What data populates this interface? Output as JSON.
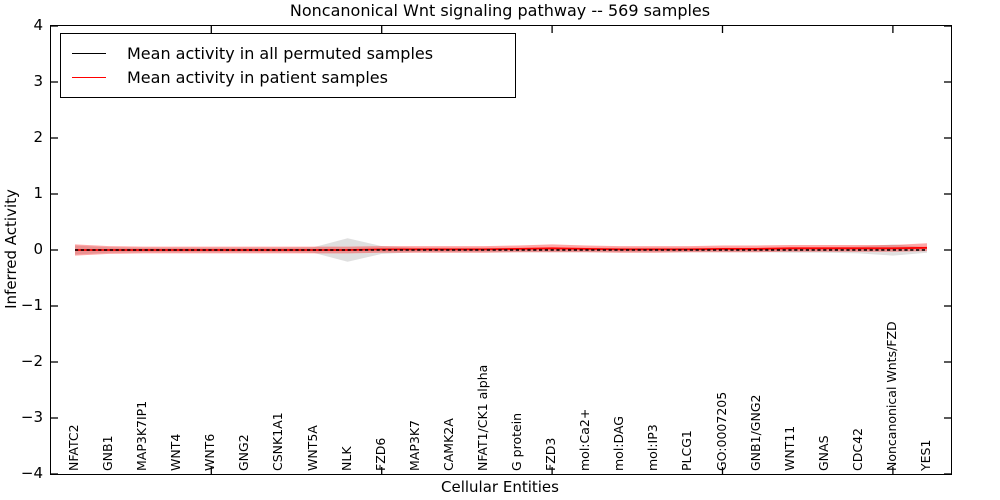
{
  "figure": {
    "background": "#ffffff"
  },
  "legend": {
    "items": [
      {
        "label": "Mean activity in all permuted samples",
        "color": "#000000"
      },
      {
        "label": "Mean activity in patient samples",
        "color": "#ff0000"
      }
    ]
  },
  "icons": {
    "legend_black_line": "black-line-swatch",
    "legend_red_line": "red-line-swatch"
  },
  "chart_data": {
    "type": "line",
    "title": "Noncanonical Wnt signaling pathway -- 569 samples",
    "xlabel": "Cellular Entities",
    "ylabel": "Inferred Activity",
    "ylim": [
      -4,
      4
    ],
    "yticks": [
      -4,
      -3,
      -2,
      -1,
      0,
      1,
      2,
      3,
      4
    ],
    "grid": false,
    "legend_position": "upper left",
    "categories": [
      "NFATC2",
      "GNB1",
      "MAP3K7IP1",
      "WNT4",
      "WNT6",
      "GNG2",
      "CSNK1A1",
      "WNT5A",
      "NLK",
      "FZD6",
      "MAP3K7",
      "CAMK2A",
      "NFAT1/CK1 alpha",
      "G protein",
      "FZD3",
      "mol:Ca2+",
      "mol:DAG",
      "mol:IP3",
      "PLCG1",
      "GO:0007205",
      "GNB1/GNG2",
      "WNT11",
      "GNAS",
      "CDC42",
      "Noncanonical Wnts/FZD",
      "YES1"
    ],
    "xtick_category_indices": [
      4,
      9,
      14,
      19,
      24
    ],
    "series": [
      {
        "name": "Mean activity in all permuted samples",
        "color": "#000000",
        "line_style": "dashed",
        "values": [
          0,
          0,
          0,
          0,
          0,
          0,
          0,
          0,
          0,
          0,
          0,
          0,
          0,
          0,
          0,
          0,
          0,
          0,
          0,
          0,
          0,
          0,
          0,
          0,
          0,
          0
        ],
        "band_upper": [
          0.08,
          0.05,
          0.04,
          0.04,
          0.04,
          0.04,
          0.04,
          0.05,
          0.21,
          0.07,
          0.04,
          0.04,
          0.04,
          0.04,
          0.04,
          0.04,
          0.04,
          0.04,
          0.04,
          0.04,
          0.04,
          0.05,
          0.05,
          0.06,
          0.1,
          0.05
        ],
        "band_lower": [
          -0.08,
          -0.05,
          -0.04,
          -0.04,
          -0.04,
          -0.04,
          -0.04,
          -0.05,
          -0.21,
          -0.07,
          -0.04,
          -0.04,
          -0.04,
          -0.04,
          -0.04,
          -0.04,
          -0.04,
          -0.04,
          -0.04,
          -0.04,
          -0.04,
          -0.05,
          -0.05,
          -0.06,
          -0.1,
          -0.05
        ],
        "band_color": "#aaaaaa",
        "band_opacity": 0.38
      },
      {
        "name": "Mean activity in patient samples",
        "color": "#ff0000",
        "line_style": "solid",
        "values": [
          0,
          0,
          0,
          0,
          0,
          0,
          0,
          0,
          0,
          0.01,
          0.01,
          0.01,
          0.01,
          0.02,
          0.03,
          0.02,
          0.01,
          0.01,
          0.01,
          0.02,
          0.02,
          0.03,
          0.03,
          0.03,
          0.03,
          0.04
        ],
        "band_upper": [
          0.1,
          0.07,
          0.06,
          0.06,
          0.06,
          0.06,
          0.06,
          0.06,
          0.06,
          0.07,
          0.07,
          0.07,
          0.07,
          0.08,
          0.1,
          0.08,
          0.07,
          0.07,
          0.07,
          0.08,
          0.08,
          0.09,
          0.09,
          0.09,
          0.09,
          0.12
        ],
        "band_lower": [
          -0.1,
          -0.07,
          -0.06,
          -0.06,
          -0.06,
          -0.06,
          -0.06,
          -0.06,
          -0.06,
          -0.05,
          -0.05,
          -0.05,
          -0.05,
          -0.04,
          -0.04,
          -0.04,
          -0.05,
          -0.05,
          -0.04,
          -0.04,
          -0.04,
          -0.03,
          -0.03,
          -0.03,
          -0.03,
          -0.02
        ],
        "band_color": "#ff0000",
        "band_opacity": 0.35
      }
    ]
  }
}
